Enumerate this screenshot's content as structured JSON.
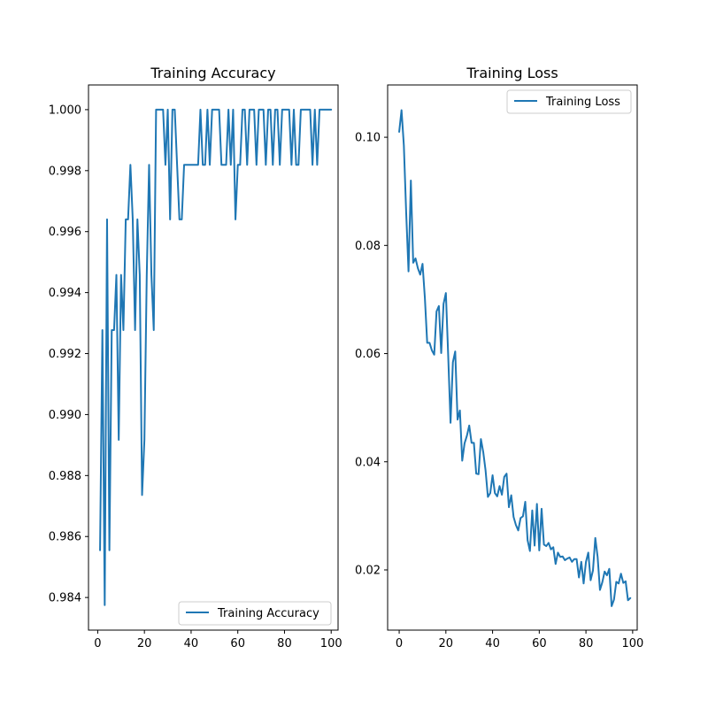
{
  "chart_data": [
    {
      "type": "line",
      "title": "Training Accuracy",
      "xlabel": "",
      "ylabel": "",
      "xlim": [
        -3.95,
        102.95
      ],
      "ylim": [
        0.98293,
        1.00081
      ],
      "xticks": [
        0,
        20,
        40,
        60,
        80,
        100
      ],
      "xtick_labels": [
        "0",
        "20",
        "40",
        "60",
        "80",
        "100"
      ],
      "yticks": [
        0.984,
        0.986,
        0.988,
        0.99,
        0.992,
        0.994,
        0.996,
        0.998,
        1.0
      ],
      "ytick_labels": [
        "0.984",
        "0.986",
        "0.988",
        "0.990",
        "0.992",
        "0.994",
        "0.996",
        "0.998",
        "1.000"
      ],
      "grid": false,
      "legend": "lower right",
      "color": "#1f77b4",
      "series": [
        {
          "name": "Training Accuracy",
          "x": [
            1,
            2,
            3,
            4,
            5,
            6,
            7,
            8,
            9,
            10,
            11,
            12,
            13,
            14,
            15,
            16,
            17,
            18,
            19,
            20,
            21,
            22,
            23,
            24,
            25,
            26,
            27,
            28,
            29,
            30,
            31,
            32,
            33,
            34,
            35,
            36,
            37,
            38,
            39,
            40,
            41,
            42,
            43,
            44,
            45,
            46,
            47,
            48,
            49,
            50,
            51,
            52,
            53,
            54,
            55,
            56,
            57,
            58,
            59,
            60,
            61,
            62,
            63,
            64,
            65,
            66,
            67,
            68,
            69,
            70,
            71,
            72,
            73,
            74,
            75,
            76,
            77,
            78,
            79,
            80,
            81,
            82,
            83,
            84,
            85,
            86,
            87,
            88,
            89,
            90,
            91,
            92,
            93,
            94,
            95,
            96,
            97,
            98,
            99,
            100
          ],
          "values": [
            0.98555,
            0.99277,
            0.98375,
            0.9964,
            0.98555,
            0.99277,
            0.99277,
            0.99458,
            0.98917,
            0.99458,
            0.99277,
            0.9964,
            0.9964,
            0.99819,
            0.9964,
            0.99277,
            0.9964,
            0.99458,
            0.98736,
            0.98917,
            0.99458,
            0.99819,
            0.99458,
            0.99277,
            1.0,
            1.0,
            1.0,
            1.0,
            0.99819,
            1.0,
            0.9964,
            1.0,
            1.0,
            0.99819,
            0.9964,
            0.9964,
            0.99819,
            0.99819,
            0.99819,
            0.99819,
            0.99819,
            0.99819,
            0.99819,
            1.0,
            0.99819,
            0.99819,
            1.0,
            0.99819,
            1.0,
            1.0,
            1.0,
            1.0,
            0.99819,
            0.99819,
            0.99819,
            1.0,
            0.99819,
            1.0,
            0.9964,
            0.99819,
            0.99819,
            1.0,
            1.0,
            0.99819,
            1.0,
            1.0,
            1.0,
            0.99819,
            1.0,
            1.0,
            1.0,
            0.99819,
            1.0,
            1.0,
            0.99819,
            1.0,
            1.0,
            0.99819,
            1.0,
            1.0,
            1.0,
            1.0,
            0.99819,
            1.0,
            0.99819,
            0.99819,
            1.0,
            1.0,
            1.0,
            1.0,
            1.0,
            0.99819,
            1.0,
            0.99819,
            1.0,
            1.0,
            1.0,
            1.0,
            1.0,
            1.0
          ]
        }
      ]
    },
    {
      "type": "line",
      "title": "Training Loss",
      "xlabel": "",
      "ylabel": "",
      "xlim": [
        -4.95,
        101.95
      ],
      "ylim": [
        0.00887,
        0.10967
      ],
      "xticks": [
        0,
        20,
        40,
        60,
        80,
        100
      ],
      "xtick_labels": [
        "0",
        "20",
        "40",
        "60",
        "80",
        "100"
      ],
      "yticks": [
        0.02,
        0.04,
        0.06,
        0.08,
        0.1
      ],
      "ytick_labels": [
        "0.02",
        "0.04",
        "0.06",
        "0.08",
        "0.10"
      ],
      "grid": false,
      "legend": "upper right",
      "color": "#1f77b4",
      "series": [
        {
          "name": "Training Loss",
          "x": [
            0,
            1,
            2,
            3,
            4,
            5,
            6,
            7,
            8,
            9,
            10,
            11,
            12,
            13,
            14,
            15,
            16,
            17,
            18,
            19,
            20,
            21,
            22,
            23,
            24,
            25,
            26,
            27,
            28,
            29,
            30,
            31,
            32,
            33,
            34,
            35,
            36,
            37,
            38,
            39,
            40,
            41,
            42,
            43,
            44,
            45,
            46,
            47,
            48,
            49,
            50,
            51,
            52,
            53,
            54,
            55,
            56,
            57,
            58,
            59,
            60,
            61,
            62,
            63,
            64,
            65,
            66,
            67,
            68,
            69,
            70,
            71,
            72,
            73,
            74,
            75,
            76,
            77,
            78,
            79,
            80,
            81,
            82,
            83,
            84,
            85,
            86,
            87,
            88,
            89,
            90,
            91,
            92,
            93,
            94,
            95,
            96,
            97,
            98,
            99
          ],
          "values": [
            0.101,
            0.105,
            0.0985,
            0.086,
            0.0752,
            0.092,
            0.0768,
            0.0776,
            0.0758,
            0.0746,
            0.0766,
            0.0703,
            0.062,
            0.062,
            0.0606,
            0.0598,
            0.0678,
            0.0688,
            0.0601,
            0.0692,
            0.0712,
            0.0595,
            0.0472,
            0.0584,
            0.0604,
            0.0478,
            0.0495,
            0.0402,
            0.0434,
            0.0448,
            0.0467,
            0.0435,
            0.0435,
            0.0378,
            0.0377,
            0.0442,
            0.0418,
            0.0384,
            0.0335,
            0.0342,
            0.0375,
            0.0342,
            0.0336,
            0.0355,
            0.0339,
            0.0372,
            0.0378,
            0.0316,
            0.0338,
            0.0298,
            0.0283,
            0.0273,
            0.0296,
            0.0299,
            0.0326,
            0.0255,
            0.0235,
            0.031,
            0.0245,
            0.0322,
            0.0236,
            0.0313,
            0.0247,
            0.0244,
            0.025,
            0.0238,
            0.0242,
            0.0211,
            0.0232,
            0.0224,
            0.0225,
            0.0218,
            0.0221,
            0.0223,
            0.0215,
            0.022,
            0.022,
            0.0186,
            0.0215,
            0.0175,
            0.0215,
            0.0232,
            0.0181,
            0.0199,
            0.0259,
            0.0224,
            0.0163,
            0.0177,
            0.0197,
            0.019,
            0.0202,
            0.0133,
            0.0145,
            0.0178,
            0.0175,
            0.0193,
            0.0176,
            0.0179,
            0.0144,
            0.0148
          ]
        }
      ]
    }
  ]
}
